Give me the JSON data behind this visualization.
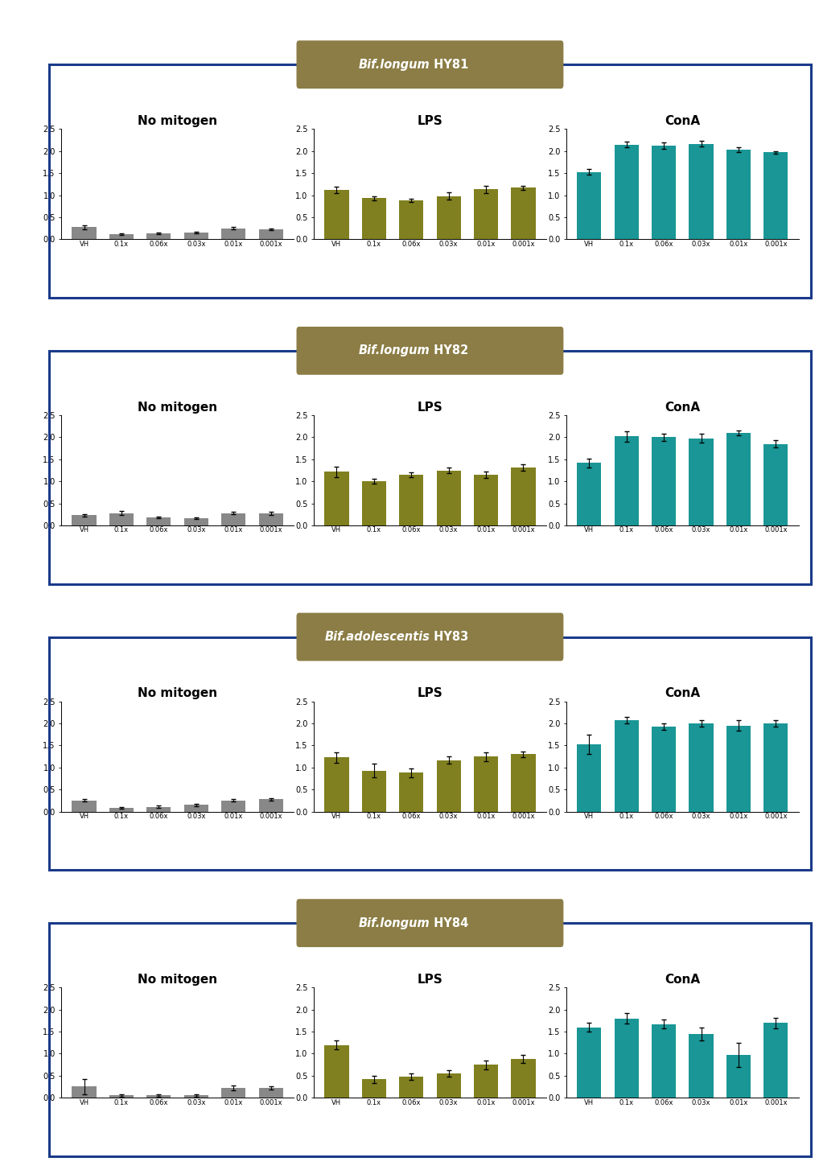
{
  "rows": [
    {
      "title": "Bif.longum HY81",
      "title_italic": "Bif.longum",
      "title_plain": " HY81",
      "panels": [
        {
          "subtitle": "No mitogen",
          "color": "#888888",
          "values": [
            0.27,
            0.12,
            0.13,
            0.15,
            0.25,
            0.23
          ],
          "errors": [
            0.04,
            0.02,
            0.02,
            0.02,
            0.03,
            0.02
          ]
        },
        {
          "subtitle": "LPS",
          "color": "#808020",
          "values": [
            1.12,
            0.93,
            0.88,
            0.98,
            1.13,
            1.17
          ],
          "errors": [
            0.08,
            0.05,
            0.04,
            0.08,
            0.09,
            0.05
          ]
        },
        {
          "subtitle": "ConA",
          "color": "#1a9696",
          "values": [
            1.53,
            2.15,
            2.13,
            2.17,
            2.03,
            1.97
          ],
          "errors": [
            0.06,
            0.06,
            0.07,
            0.06,
            0.05,
            0.03
          ]
        }
      ]
    },
    {
      "title": "Bif.longum HY82",
      "title_italic": "Bif.longum",
      "title_plain": " HY82",
      "panels": [
        {
          "subtitle": "No mitogen",
          "color": "#888888",
          "values": [
            0.23,
            0.28,
            0.18,
            0.17,
            0.28,
            0.27
          ],
          "errors": [
            0.03,
            0.04,
            0.02,
            0.02,
            0.03,
            0.03
          ]
        },
        {
          "subtitle": "LPS",
          "color": "#808020",
          "values": [
            1.22,
            1.0,
            1.15,
            1.25,
            1.15,
            1.32
          ],
          "errors": [
            0.12,
            0.05,
            0.06,
            0.06,
            0.08,
            0.07
          ]
        },
        {
          "subtitle": "ConA",
          "color": "#1a9696",
          "values": [
            1.42,
            2.02,
            2.0,
            1.98,
            2.1,
            1.85
          ],
          "errors": [
            0.1,
            0.12,
            0.08,
            0.1,
            0.06,
            0.08
          ]
        }
      ]
    },
    {
      "title": "Bif.adolescentis HY83",
      "title_italic": "Bif.adolescentis",
      "title_plain": " HY83",
      "panels": [
        {
          "subtitle": "No mitogen",
          "color": "#888888",
          "values": [
            0.25,
            0.08,
            0.11,
            0.15,
            0.25,
            0.28
          ],
          "errors": [
            0.03,
            0.02,
            0.02,
            0.03,
            0.03,
            0.03
          ]
        },
        {
          "subtitle": "LPS",
          "color": "#808020",
          "values": [
            1.23,
            0.93,
            0.88,
            1.17,
            1.25,
            1.3
          ],
          "errors": [
            0.12,
            0.15,
            0.1,
            0.08,
            0.1,
            0.07
          ]
        },
        {
          "subtitle": "ConA",
          "color": "#1a9696",
          "values": [
            1.53,
            2.07,
            1.93,
            2.0,
            1.95,
            2.0
          ],
          "errors": [
            0.22,
            0.07,
            0.07,
            0.08,
            0.12,
            0.07
          ]
        }
      ]
    },
    {
      "title": "Bif.longum HY84",
      "title_italic": "Bif.longum",
      "title_plain": " HY84",
      "panels": [
        {
          "subtitle": "No mitogen",
          "color": "#888888",
          "values": [
            0.25,
            0.05,
            0.05,
            0.05,
            0.22,
            0.22
          ],
          "errors": [
            0.18,
            0.02,
            0.02,
            0.02,
            0.05,
            0.04
          ]
        },
        {
          "subtitle": "LPS",
          "color": "#808020",
          "values": [
            1.2,
            0.42,
            0.48,
            0.55,
            0.75,
            0.88
          ],
          "errors": [
            0.1,
            0.08,
            0.07,
            0.08,
            0.1,
            0.09
          ]
        },
        {
          "subtitle": "ConA",
          "color": "#1a9696",
          "values": [
            1.6,
            1.8,
            1.67,
            1.45,
            0.97,
            1.7
          ],
          "errors": [
            0.1,
            0.12,
            0.1,
            0.15,
            0.28,
            0.12
          ]
        }
      ]
    }
  ],
  "x_labels": [
    "VH",
    "0.1x",
    "0.06x",
    "0.03x",
    "0.01x",
    "0.001x"
  ],
  "ylim": [
    0,
    2.5
  ],
  "yticks": [
    0.0,
    0.5,
    1.0,
    1.5,
    2.0,
    2.5
  ],
  "title_bg_color": "#8B7D45",
  "title_text_color": "white",
  "border_color": "#1a3a8a",
  "background_color": "white"
}
